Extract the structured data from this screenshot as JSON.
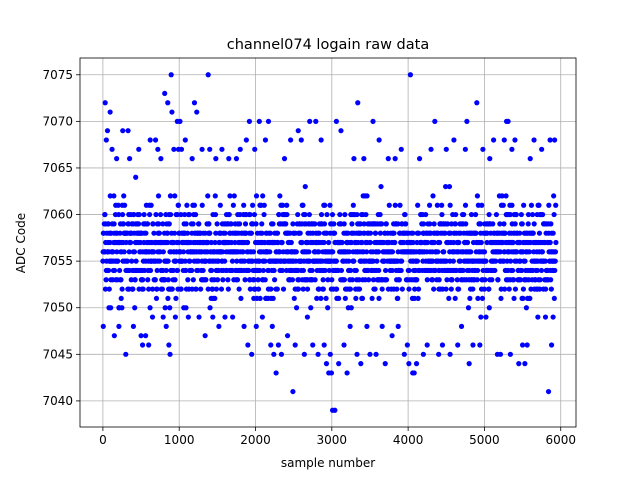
{
  "chart_data": {
    "type": "scatter",
    "title": "channel074 logain raw data",
    "xlabel": "sample number",
    "ylabel": "ADC Code",
    "xlim": [
      -300,
      6200
    ],
    "ylim": [
      7037.2,
      7076.8
    ],
    "xticks": [
      0,
      1000,
      2000,
      3000,
      4000,
      5000,
      6000
    ],
    "yticks": [
      7040,
      7045,
      7050,
      7055,
      7060,
      7065,
      7070,
      7075
    ],
    "grid": true,
    "marker_color": "#0000ff",
    "n_samples": 5940,
    "baseline": 7056,
    "series": [
      {
        "points": [
          [
            5,
            7048
          ],
          [
            30,
            7072
          ],
          [
            45,
            7068
          ],
          [
            60,
            7069
          ],
          [
            80,
            7050
          ],
          [
            95,
            7071
          ],
          [
            120,
            7067
          ],
          [
            150,
            7047
          ],
          [
            180,
            7066
          ],
          [
            210,
            7048
          ],
          [
            260,
            7069
          ],
          [
            300,
            7045
          ],
          [
            330,
            7069
          ],
          [
            350,
            7066
          ],
          [
            400,
            7048
          ],
          [
            430,
            7064
          ],
          [
            470,
            7067
          ],
          [
            500,
            7047
          ],
          [
            520,
            7046
          ],
          [
            560,
            7047
          ],
          [
            600,
            7046
          ],
          [
            620,
            7068
          ],
          [
            650,
            7049
          ],
          [
            690,
            7068
          ],
          [
            720,
            7067
          ],
          [
            760,
            7066
          ],
          [
            790,
            7049
          ],
          [
            810,
            7073
          ],
          [
            830,
            7048
          ],
          [
            850,
            7072
          ],
          [
            865,
            7046
          ],
          [
            880,
            7045
          ],
          [
            895,
            7075
          ],
          [
            905,
            7071
          ],
          [
            930,
            7067
          ],
          [
            950,
            7049
          ],
          [
            975,
            7070
          ],
          [
            990,
            7067
          ],
          [
            1010,
            7070
          ],
          [
            1030,
            7067
          ],
          [
            1060,
            7050
          ],
          [
            1080,
            7068
          ],
          [
            1120,
            7049
          ],
          [
            1170,
            7066
          ],
          [
            1200,
            7072
          ],
          [
            1230,
            7071
          ],
          [
            1260,
            7049
          ],
          [
            1300,
            7067
          ],
          [
            1340,
            7047
          ],
          [
            1380,
            7075
          ],
          [
            1400,
            7067
          ],
          [
            1440,
            7049
          ],
          [
            1480,
            7066
          ],
          [
            1520,
            7048
          ],
          [
            1560,
            7067
          ],
          [
            1600,
            7049
          ],
          [
            1650,
            7066
          ],
          [
            1700,
            7049
          ],
          [
            1750,
            7066
          ],
          [
            1800,
            7067
          ],
          [
            1850,
            7048
          ],
          [
            1880,
            7068
          ],
          [
            1900,
            7046
          ],
          [
            1920,
            7070
          ],
          [
            1950,
            7045
          ],
          [
            1990,
            7067
          ],
          [
            2010,
            7048
          ],
          [
            2050,
            7070
          ],
          [
            2090,
            7049
          ],
          [
            2130,
            7068
          ],
          [
            2170,
            7070
          ],
          [
            2200,
            7046
          ],
          [
            2220,
            7048
          ],
          [
            2240,
            7045
          ],
          [
            2270,
            7043
          ],
          [
            2300,
            7046
          ],
          [
            2340,
            7045
          ],
          [
            2380,
            7066
          ],
          [
            2420,
            7047
          ],
          [
            2460,
            7068
          ],
          [
            2490,
            7041
          ],
          [
            2520,
            7046
          ],
          [
            2560,
            7069
          ],
          [
            2600,
            7068
          ],
          [
            2640,
            7045
          ],
          [
            2680,
            7049
          ],
          [
            2710,
            7070
          ],
          [
            2750,
            7046
          ],
          [
            2790,
            7070
          ],
          [
            2820,
            7045
          ],
          [
            2860,
            7068
          ],
          [
            2900,
            7046
          ],
          [
            2930,
            7044
          ],
          [
            2960,
            7043
          ],
          [
            2980,
            7045
          ],
          [
            2995,
            7043
          ],
          [
            3010,
            7039
          ],
          [
            3040,
            7039
          ],
          [
            3060,
            7070
          ],
          [
            3090,
            7044
          ],
          [
            3120,
            7069
          ],
          [
            3160,
            7046
          ],
          [
            3200,
            7043
          ],
          [
            3240,
            7048
          ],
          [
            3290,
            7066
          ],
          [
            3330,
            7045
          ],
          [
            3340,
            7072
          ],
          [
            3380,
            7044
          ],
          [
            3420,
            7066
          ],
          [
            3460,
            7048
          ],
          [
            3500,
            7045
          ],
          [
            3540,
            7070
          ],
          [
            3580,
            7045
          ],
          [
            3620,
            7068
          ],
          [
            3660,
            7048
          ],
          [
            3700,
            7044
          ],
          [
            3740,
            7066
          ],
          [
            3790,
            7047
          ],
          [
            3830,
            7066
          ],
          [
            3870,
            7048
          ],
          [
            3910,
            7067
          ],
          [
            3950,
            7045
          ],
          [
            3990,
            7046
          ],
          [
            4010,
            7044
          ],
          [
            4030,
            7075
          ],
          [
            4060,
            7043
          ],
          [
            4080,
            7043
          ],
          [
            4110,
            7044
          ],
          [
            4150,
            7066
          ],
          [
            4200,
            7045
          ],
          [
            4250,
            7046
          ],
          [
            4300,
            7067
          ],
          [
            4350,
            7070
          ],
          [
            4400,
            7045
          ],
          [
            4450,
            7046
          ],
          [
            4500,
            7067
          ],
          [
            4550,
            7045
          ],
          [
            4600,
            7068
          ],
          [
            4650,
            7046
          ],
          [
            4700,
            7048
          ],
          [
            4750,
            7067
          ],
          [
            4770,
            7070
          ],
          [
            4800,
            7044
          ],
          [
            4850,
            7046
          ],
          [
            4900,
            7072
          ],
          [
            4940,
            7046
          ],
          [
            4980,
            7067
          ],
          [
            5020,
            7049
          ],
          [
            5070,
            7066
          ],
          [
            5120,
            7068
          ],
          [
            5170,
            7045
          ],
          [
            5210,
            7045
          ],
          [
            5260,
            7068
          ],
          [
            5290,
            7070
          ],
          [
            5310,
            7070
          ],
          [
            5340,
            7045
          ],
          [
            5360,
            7067
          ],
          [
            5400,
            7068
          ],
          [
            5450,
            7044
          ],
          [
            5500,
            7046
          ],
          [
            5530,
            7044
          ],
          [
            5560,
            7046
          ],
          [
            5600,
            7066
          ],
          [
            5650,
            7068
          ],
          [
            5700,
            7049
          ],
          [
            5750,
            7067
          ],
          [
            5800,
            7049
          ],
          [
            5840,
            7041
          ],
          [
            5860,
            7068
          ],
          [
            5880,
            7046
          ],
          [
            5900,
            7049
          ],
          [
            5920,
            7068
          ]
        ]
      }
    ]
  }
}
